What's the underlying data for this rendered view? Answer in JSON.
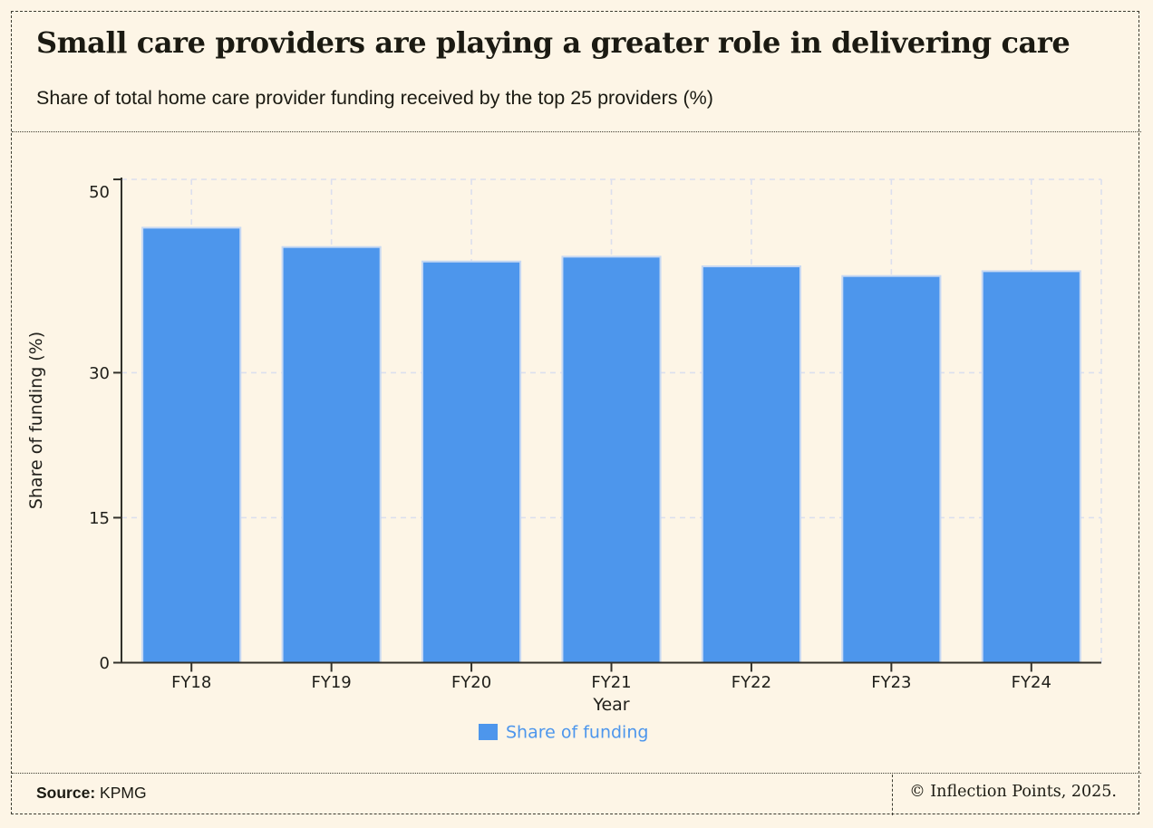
{
  "header": {
    "title": "Small care providers are playing a greater role in delivering care",
    "subtitle": "Share of total home care provider funding received by the top 25 providers (%)"
  },
  "chart_data": {
    "type": "bar",
    "categories": [
      "FY18",
      "FY19",
      "FY20",
      "FY21",
      "FY22",
      "FY23",
      "FY24"
    ],
    "values": [
      45,
      43,
      41.5,
      42,
      41,
      40,
      40.5
    ],
    "title": "",
    "xlabel": "Year",
    "ylabel": "Share of funding (%)",
    "ylim": [
      0,
      50
    ],
    "yticks": [
      0,
      15,
      30,
      50
    ],
    "grid": "dashed, horizontal at yticks and vertical at each category center",
    "legend": {
      "position": "bottom-center",
      "entries": [
        {
          "label": "Share of funding",
          "swatch": "blue-square"
        }
      ]
    }
  },
  "footer": {
    "source_label": "Source:",
    "source_value": "KPMG",
    "copyright": "© Inflection Points, 2025."
  },
  "colors": {
    "background": "#fdf5e6",
    "bar": "#4d96ec",
    "bar_edge": "#c6d8f3",
    "legend_text": "#4d96ec",
    "grid": "#dcdfee",
    "axis": "#32312a",
    "chart_text": "#21201b",
    "border": "#3d3c30"
  }
}
